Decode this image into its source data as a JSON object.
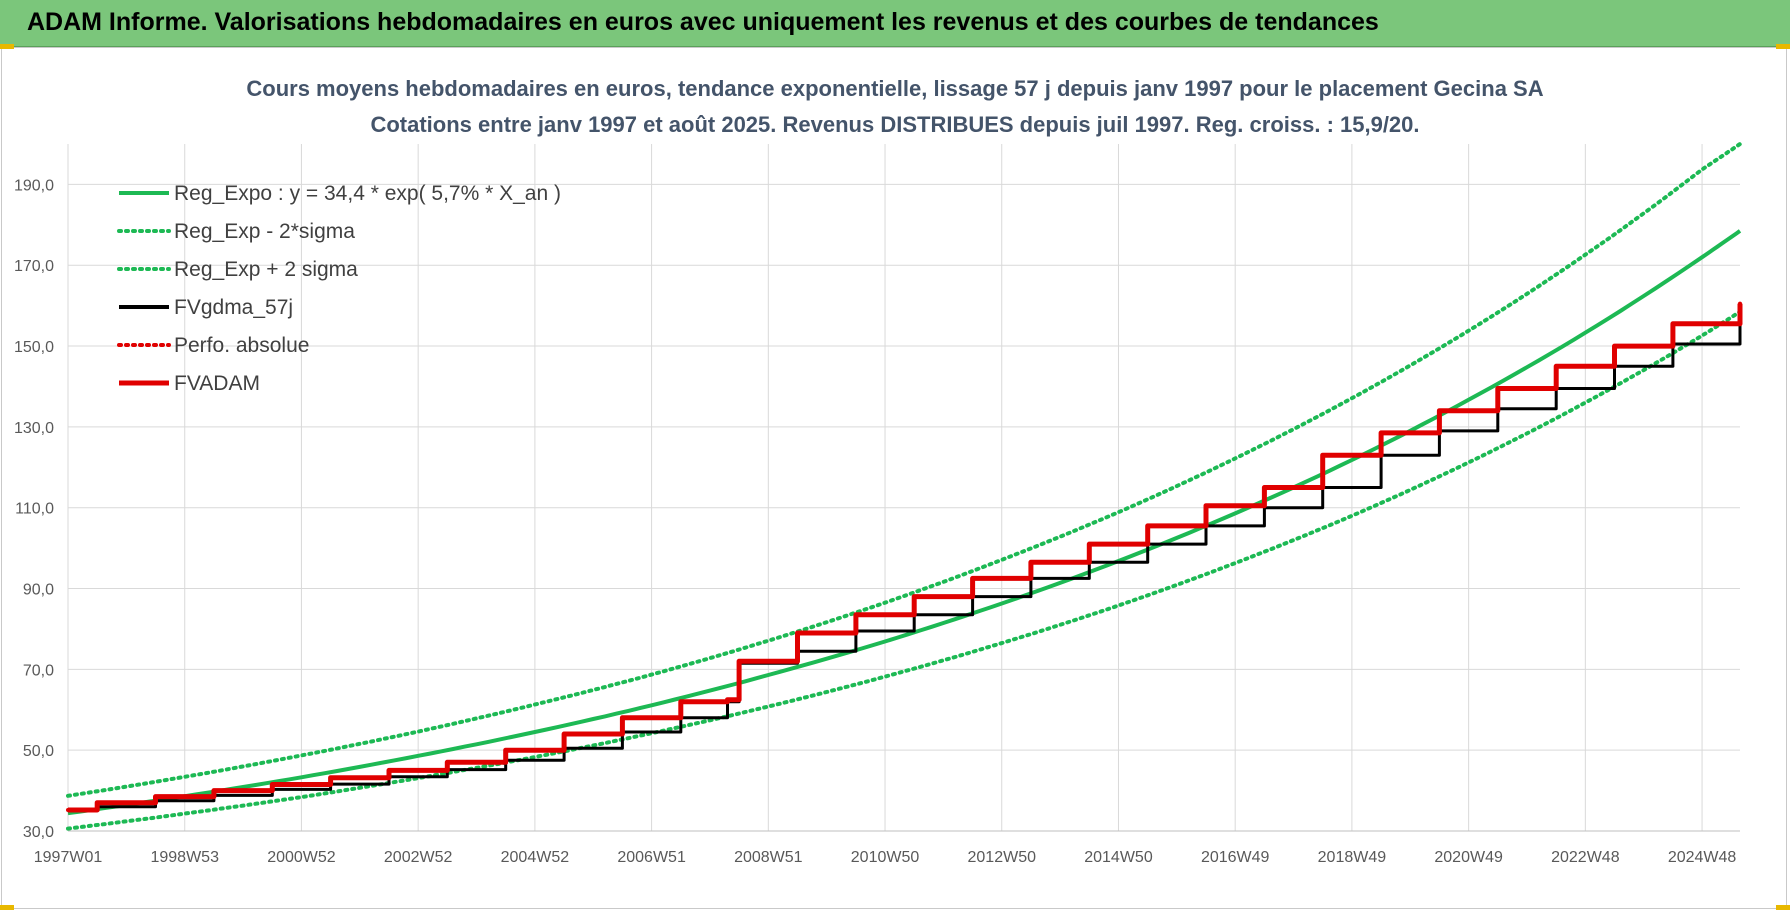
{
  "header": {
    "title": "ADAM Informe. Valorisations hebdomadaires en euros avec uniquement les revenus et des courbes de tendances"
  },
  "chart_data": {
    "type": "line",
    "title": "Cours moyens hebdomadaires en euros, tendance exponentielle, lissage 57 j depuis janv 1997 pour le placement Gecina SA",
    "subtitle": "Cotations entre janv 1997 et août 2025.  Revenus DISTRIBUES depuis juil 1997.  Reg. croiss. : 15,9/20.",
    "xlabel": "",
    "ylabel": "",
    "x_range": [
      1997.0,
      2025.65
    ],
    "ylim": [
      30,
      200
    ],
    "yticks": [
      30,
      50,
      70,
      90,
      110,
      130,
      150,
      170,
      190
    ],
    "ytick_labels": [
      "30,0",
      "50,0",
      "70,0",
      "90,0",
      "110,0",
      "130,0",
      "150,0",
      "170,0",
      "190,0"
    ],
    "xticks": [
      {
        "label": "1997W01",
        "x": 1997.0
      },
      {
        "label": "1998W53",
        "x": 1999.0
      },
      {
        "label": "2000W52",
        "x": 2001.0
      },
      {
        "label": "2002W52",
        "x": 2003.0
      },
      {
        "label": "2004W52",
        "x": 2005.0
      },
      {
        "label": "2006W51",
        "x": 2007.0
      },
      {
        "label": "2008W51",
        "x": 2009.0
      },
      {
        "label": "2010W50",
        "x": 2011.0
      },
      {
        "label": "2012W50",
        "x": 2013.0
      },
      {
        "label": "2014W50",
        "x": 2015.0
      },
      {
        "label": "2016W49",
        "x": 2017.0
      },
      {
        "label": "2018W49",
        "x": 2019.0
      },
      {
        "label": "2020W49",
        "x": 2021.0
      },
      {
        "label": "2022W48",
        "x": 2023.0
      },
      {
        "label": "2024W48",
        "x": 2025.0
      }
    ],
    "grid": true,
    "legend_position": "top-left",
    "series": [
      {
        "name": "Reg_Expo : y = 34,4 * exp( 5,7% *  X_an )",
        "color": "#1db954",
        "style": "solid",
        "x": [
          1997,
          1999,
          2001,
          2003,
          2005,
          2007,
          2009,
          2011,
          2013,
          2015,
          2017,
          2019,
          2021,
          2023,
          2025,
          2025.65
        ],
        "values": [
          34.4,
          38.6,
          43.3,
          48.6,
          54.5,
          61.1,
          68.6,
          76.9,
          86.3,
          96.8,
          108.6,
          121.8,
          136.7,
          153.3,
          172.0,
          178.5
        ]
      },
      {
        "name": "Reg_Exp - 2*sigma",
        "color": "#1db954",
        "style": "dotted",
        "x": [
          1997,
          1999,
          2001,
          2003,
          2005,
          2007,
          2009,
          2011,
          2013,
          2015,
          2017,
          2019,
          2021,
          2023,
          2025,
          2025.65
        ],
        "values": [
          30.6,
          34.3,
          38.4,
          43.1,
          48.3,
          54.2,
          60.8,
          68.2,
          76.5,
          85.8,
          96.3,
          108.0,
          121.2,
          136.0,
          152.6,
          158.5
        ]
      },
      {
        "name": "Reg_Exp + 2 sigma",
        "color": "#1db954",
        "style": "dotted",
        "x": [
          1997,
          1999,
          2001,
          2003,
          2005,
          2007,
          2009,
          2011,
          2013,
          2015,
          2017,
          2019,
          2021,
          2023,
          2025,
          2025.65
        ],
        "values": [
          38.7,
          43.4,
          48.7,
          54.6,
          61.3,
          68.7,
          77.1,
          86.5,
          97.1,
          108.9,
          122.2,
          137.1,
          153.8,
          172.6,
          193.7,
          200.0
        ]
      },
      {
        "name": "FVgdma_57j",
        "color": "#000000",
        "style": "solid",
        "x": [
          1997,
          1997.5,
          1998.5,
          1999.5,
          2000.5,
          2001.5,
          2002.5,
          2003.5,
          2004.5,
          2005.5,
          2006.5,
          2007.5,
          2008.3,
          2008.5,
          2009.5,
          2010.5,
          2011.5,
          2012.5,
          2013.5,
          2014.5,
          2015.5,
          2016.5,
          2017.5,
          2018.5,
          2019.5,
          2020.5,
          2021.5,
          2022.5,
          2023.5,
          2024.5,
          2025.65
        ],
        "values": [
          35.2,
          36.0,
          37.5,
          38.8,
          40.3,
          41.6,
          43.4,
          45.2,
          47.5,
          50.5,
          54.5,
          58.0,
          62.0,
          71.5,
          74.5,
          79.5,
          83.5,
          88.0,
          92.5,
          96.5,
          101.0,
          105.5,
          110.0,
          115.0,
          123.0,
          129.0,
          134.5,
          139.5,
          145.0,
          150.5,
          160.5
        ]
      },
      {
        "name": "Perfo. absolue",
        "color": "#e00000",
        "style": "dotted",
        "x": [
          1997,
          1997.5,
          1998.5,
          1999.5,
          2000.5,
          2001.5,
          2002.5,
          2003.5,
          2004.5,
          2005.5,
          2006.5,
          2007.5,
          2008.3,
          2008.5,
          2009.5,
          2010.5,
          2011.5,
          2012.5,
          2013.5,
          2014.5,
          2015.5,
          2016.5,
          2017.5,
          2018.5,
          2019.5,
          2020.5,
          2021.5,
          2022.5,
          2023.5,
          2024.5,
          2025.65
        ],
        "values": [
          35.2,
          37.0,
          38.5,
          40.0,
          41.5,
          43.2,
          45.0,
          47.0,
          50.0,
          54.0,
          58.0,
          62.0,
          62.5,
          72.0,
          79.0,
          83.5,
          88.0,
          92.5,
          96.5,
          101.0,
          105.5,
          110.5,
          115.0,
          123.0,
          128.5,
          134.0,
          139.5,
          145.0,
          150.0,
          155.5,
          160.5
        ]
      },
      {
        "name": "FVADAM",
        "color": "#e00000",
        "style": "solid",
        "x": [
          1997,
          1997.5,
          1998.5,
          1999.5,
          2000.5,
          2001.5,
          2002.5,
          2003.5,
          2004.5,
          2005.5,
          2006.5,
          2007.5,
          2008.3,
          2008.5,
          2009.5,
          2010.5,
          2011.5,
          2012.5,
          2013.5,
          2014.5,
          2015.5,
          2016.5,
          2017.5,
          2018.5,
          2019.5,
          2020.5,
          2021.5,
          2022.5,
          2023.5,
          2024.5,
          2025.65
        ],
        "values": [
          35.2,
          37.0,
          38.5,
          40.0,
          41.5,
          43.2,
          45.0,
          47.0,
          50.0,
          54.0,
          58.0,
          62.0,
          62.5,
          72.0,
          79.0,
          83.5,
          88.0,
          92.5,
          96.5,
          101.0,
          105.5,
          110.5,
          115.0,
          123.0,
          128.5,
          134.0,
          139.5,
          145.0,
          150.0,
          155.5,
          160.5
        ]
      }
    ]
  }
}
